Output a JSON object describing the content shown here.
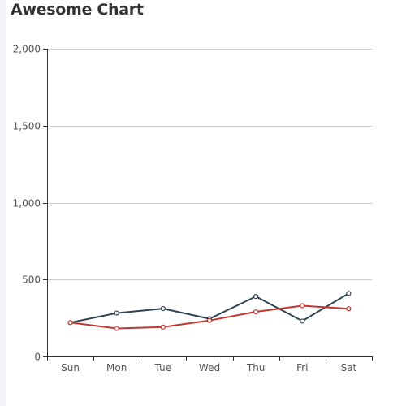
{
  "chart_data": {
    "type": "line",
    "title": "Awesome Chart",
    "categories": [
      "Sun",
      "Mon",
      "Tue",
      "Wed",
      "Thu",
      "Fri",
      "Sat"
    ],
    "ylim": [
      0,
      2000
    ],
    "yticks": [
      0,
      500,
      1000,
      1500,
      2000
    ],
    "ytick_labels": [
      "0",
      "500",
      "1,000",
      "1,500",
      "2,000"
    ],
    "grid": true,
    "series": [
      {
        "color": "#2f4554",
        "values": [
          220,
          282,
          311,
          245,
          390,
          230,
          410
        ]
      },
      {
        "color": "#c23531",
        "values": [
          220,
          182,
          191,
          234,
          290,
          330,
          310
        ]
      }
    ]
  },
  "colors": {
    "grid": "#cccccc",
    "axis": "#333333",
    "tick_text": "#555555"
  }
}
